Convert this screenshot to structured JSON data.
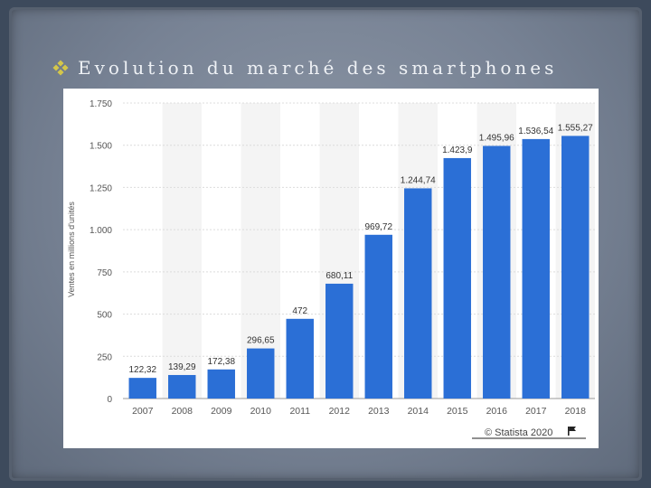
{
  "slide": {
    "title": "Evolution du marché des smartphones",
    "bullet_icon": "diamond-bullet-icon"
  },
  "chart_data": {
    "type": "bar",
    "title": "",
    "xlabel": "",
    "ylabel": "Ventes en millions d'unités",
    "categories": [
      "2007",
      "2008",
      "2009",
      "2010",
      "2011",
      "2012",
      "2013",
      "2014",
      "2015",
      "2016",
      "2017",
      "2018"
    ],
    "values": [
      122.32,
      139.29,
      172.38,
      296.65,
      472,
      680.11,
      969.72,
      1244.74,
      1423.9,
      1495.96,
      1536.54,
      1555.27
    ],
    "value_labels": [
      "122,32",
      "139,29",
      "172,38",
      "296,65",
      "472",
      "680,11",
      "969,72",
      "1.244,74",
      "1.423,9",
      "1.495,96",
      "1.536,54",
      "1.555,27"
    ],
    "yticks": [
      0,
      250,
      500,
      750,
      1000,
      1250,
      1500,
      1750
    ],
    "ytick_labels": [
      "0",
      "250",
      "500",
      "750",
      "1.000",
      "1.250",
      "1.500",
      "1.750"
    ],
    "ylim": [
      0,
      1750
    ],
    "bar_color": "#2b6fd6",
    "grid": true,
    "source_credit": "© Statista 2020"
  }
}
